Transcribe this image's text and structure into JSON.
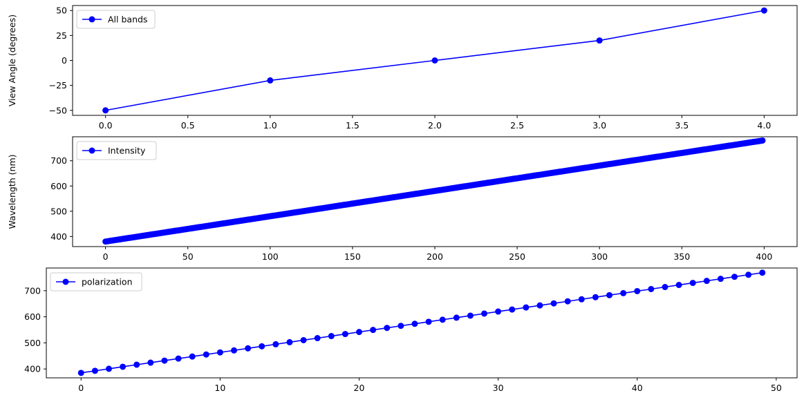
{
  "chart_data": [
    {
      "type": "line",
      "color": "#0000ff",
      "marker": "circle",
      "ylabel": "View Angle (degrees)",
      "xlabel": "",
      "legend": {
        "loc": "upper-left",
        "label": "All bands"
      },
      "xlim": [
        -0.2,
        4.2
      ],
      "ylim": [
        -55,
        55
      ],
      "xticks": [
        0.0,
        0.5,
        1.0,
        1.5,
        2.0,
        2.5,
        3.0,
        3.5,
        4.0
      ],
      "xtick_labels": [
        "0.0",
        "0.5",
        "1.0",
        "1.5",
        "2.0",
        "2.5",
        "3.0",
        "3.5",
        "4.0"
      ],
      "yticks": [
        -50,
        -25,
        0,
        25,
        50
      ],
      "ytick_labels": [
        "−50",
        "−25",
        "0",
        "25",
        "50"
      ],
      "x": [
        0,
        1,
        2,
        3,
        4
      ],
      "y": [
        -50,
        -20,
        0,
        20,
        50
      ]
    },
    {
      "type": "line",
      "color": "#0000ff",
      "marker": "circle",
      "ylabel": "Wavelength (nm)",
      "xlabel": "",
      "legend": {
        "loc": "upper-left",
        "label": "Intensity"
      },
      "xlim": [
        -20,
        420
      ],
      "ylim": [
        360,
        795
      ],
      "xticks": [
        0,
        50,
        100,
        150,
        200,
        250,
        300,
        350,
        400
      ],
      "xtick_labels": [
        "0",
        "50",
        "100",
        "150",
        "200",
        "250",
        "300",
        "350",
        "400"
      ],
      "yticks": [
        400,
        500,
        600,
        700
      ],
      "ytick_labels": [
        "400",
        "500",
        "600",
        "700"
      ],
      "n_points": 400,
      "x_start": 0,
      "x_end": 399,
      "y_start": 380,
      "y_end": 780
    },
    {
      "type": "line",
      "color": "#0000ff",
      "marker": "circle",
      "ylabel": "",
      "xlabel": "",
      "legend": {
        "loc": "upper-left",
        "label": "polarization"
      },
      "xlim": [
        -2.5,
        51.5
      ],
      "ylim": [
        366,
        787
      ],
      "xticks": [
        0,
        10,
        20,
        30,
        40,
        50
      ],
      "xtick_labels": [
        "0",
        "10",
        "20",
        "30",
        "40",
        "50"
      ],
      "yticks": [
        400,
        500,
        600,
        700
      ],
      "ytick_labels": [
        "400",
        "500",
        "600",
        "700"
      ],
      "n_points": 50,
      "x_start": 0,
      "x_end": 49,
      "y_start": 385,
      "y_end": 769
    }
  ]
}
